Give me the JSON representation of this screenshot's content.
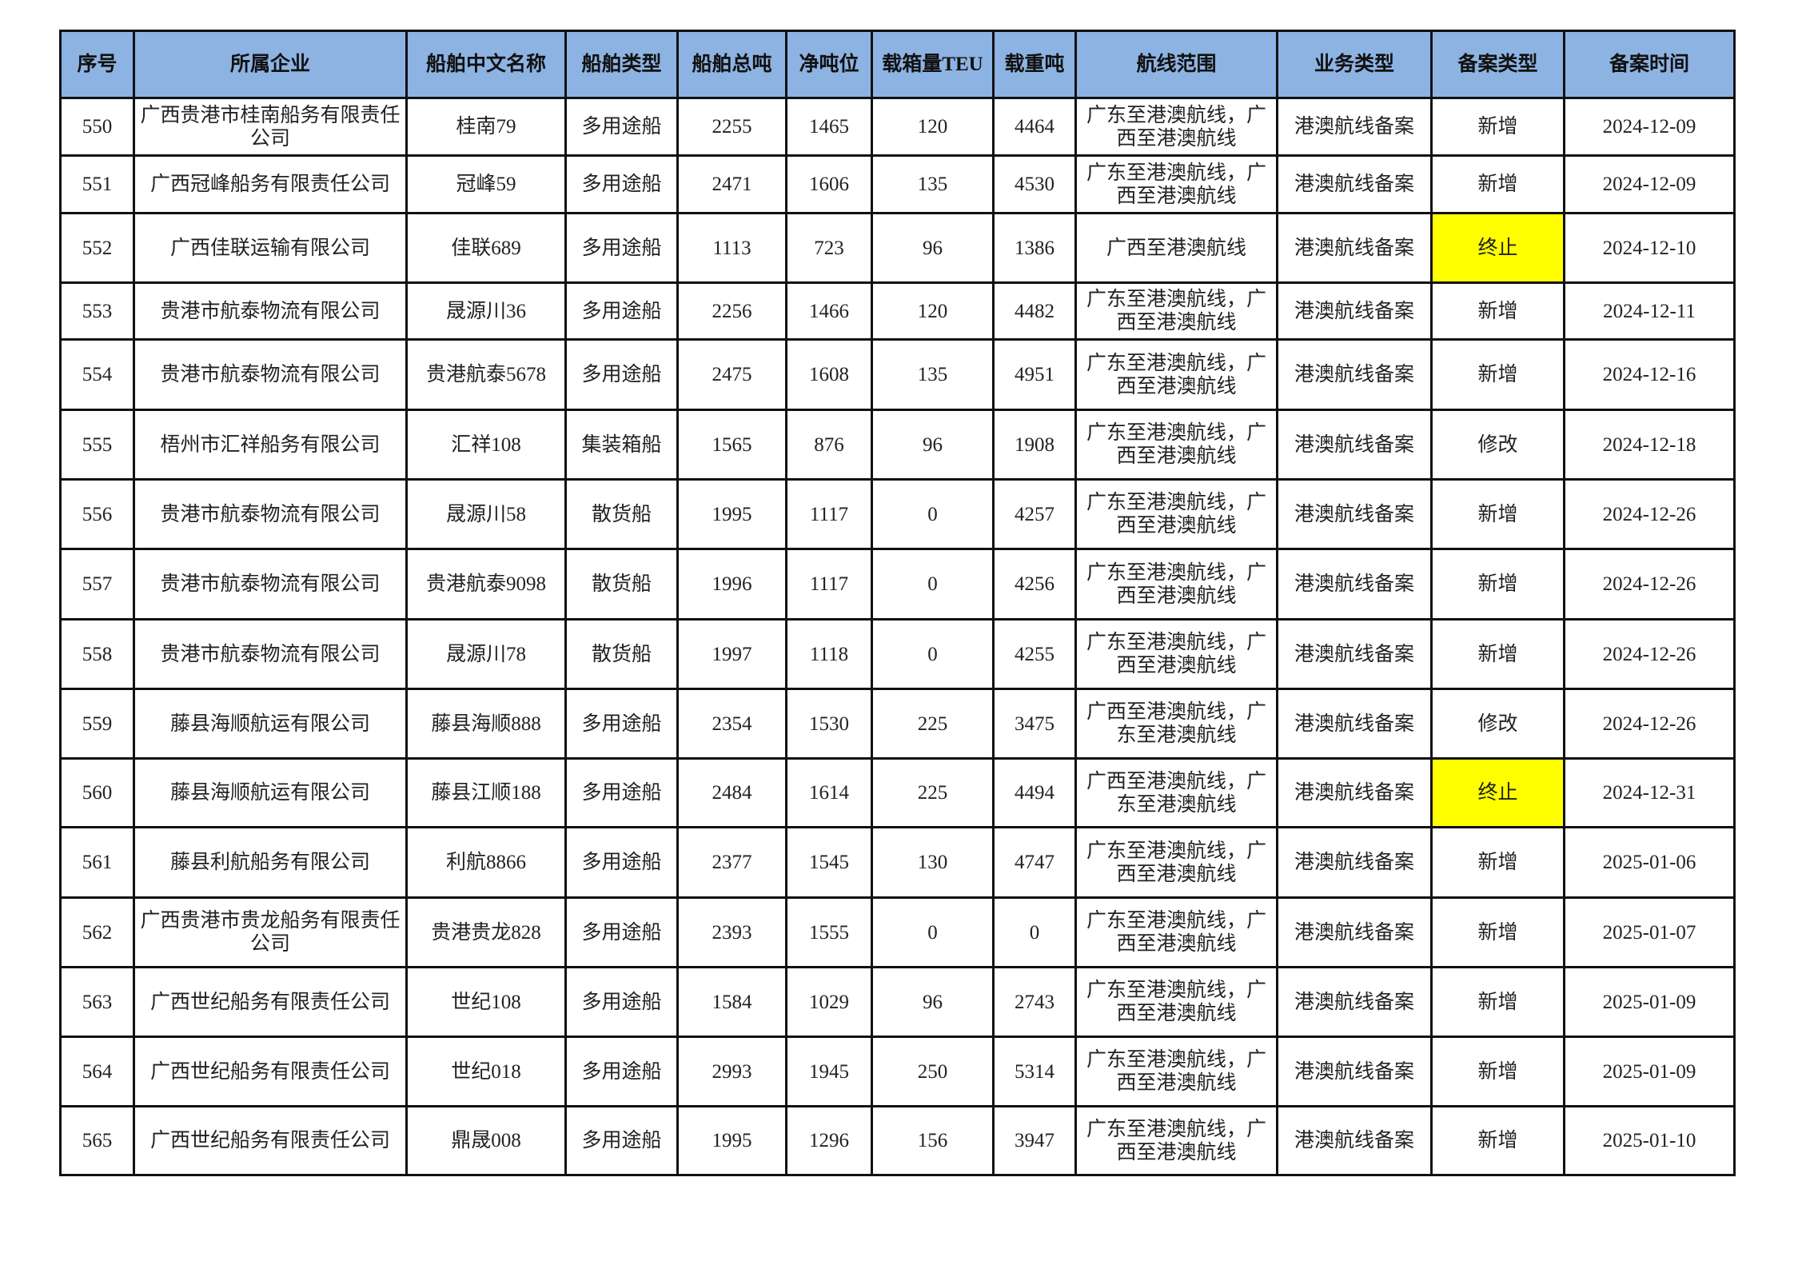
{
  "headers": [
    "序号",
    "所属企业",
    "船舶中文名称",
    "船舶类型",
    "船舶总吨",
    "净吨位",
    "载箱量TEU",
    "载重吨",
    "航线范围",
    "业务类型",
    "备案类型",
    "备案时间"
  ],
  "highlight_color": "#ffff00",
  "header_color": "#8db3e2",
  "rows": [
    [
      "550",
      "广西贵港市桂南船务有限责任公司",
      "桂南79",
      "多用途船",
      "2255",
      "1465",
      "120",
      "4464",
      "广东至港澳航线，广西至港澳航线",
      "港澳航线备案",
      "新增",
      "2024-12-09"
    ],
    [
      "551",
      "广西冠峰船务有限责任公司",
      "冠峰59",
      "多用途船",
      "2471",
      "1606",
      "135",
      "4530",
      "广东至港澳航线，广西至港澳航线",
      "港澳航线备案",
      "新增",
      "2024-12-09"
    ],
    [
      "552",
      "广西佳联运输有限公司",
      "佳联689",
      "多用途船",
      "1113",
      "723",
      "96",
      "1386",
      "广西至港澳航线",
      "港澳航线备案",
      "终止",
      "2024-12-10"
    ],
    [
      "553",
      "贵港市航泰物流有限公司",
      "晟源川36",
      "多用途船",
      "2256",
      "1466",
      "120",
      "4482",
      "广东至港澳航线，广西至港澳航线",
      "港澳航线备案",
      "新增",
      "2024-12-11"
    ],
    [
      "554",
      "贵港市航泰物流有限公司",
      "贵港航泰5678",
      "多用途船",
      "2475",
      "1608",
      "135",
      "4951",
      "广东至港澳航线，广西至港澳航线",
      "港澳航线备案",
      "新增",
      "2024-12-16"
    ],
    [
      "555",
      "梧州市汇祥船务有限公司",
      "汇祥108",
      "集装箱船",
      "1565",
      "876",
      "96",
      "1908",
      "广东至港澳航线，广西至港澳航线",
      "港澳航线备案",
      "修改",
      "2024-12-18"
    ],
    [
      "556",
      "贵港市航泰物流有限公司",
      "晟源川58",
      "散货船",
      "1995",
      "1117",
      "0",
      "4257",
      "广东至港澳航线，广西至港澳航线",
      "港澳航线备案",
      "新增",
      "2024-12-26"
    ],
    [
      "557",
      "贵港市航泰物流有限公司",
      "贵港航泰9098",
      "散货船",
      "1996",
      "1117",
      "0",
      "4256",
      "广东至港澳航线，广西至港澳航线",
      "港澳航线备案",
      "新增",
      "2024-12-26"
    ],
    [
      "558",
      "贵港市航泰物流有限公司",
      "晟源川78",
      "散货船",
      "1997",
      "1118",
      "0",
      "4255",
      "广东至港澳航线，广西至港澳航线",
      "港澳航线备案",
      "新增",
      "2024-12-26"
    ],
    [
      "559",
      "藤县海顺航运有限公司",
      "藤县海顺888",
      "多用途船",
      "2354",
      "1530",
      "225",
      "3475",
      "广西至港澳航线，广东至港澳航线",
      "港澳航线备案",
      "修改",
      "2024-12-26"
    ],
    [
      "560",
      "藤县海顺航运有限公司",
      "藤县江顺188",
      "多用途船",
      "2484",
      "1614",
      "225",
      "4494",
      "广西至港澳航线，广东至港澳航线",
      "港澳航线备案",
      "终止",
      "2024-12-31"
    ],
    [
      "561",
      "藤县利航船务有限公司",
      "利航8866",
      "多用途船",
      "2377",
      "1545",
      "130",
      "4747",
      "广东至港澳航线，广西至港澳航线",
      "港澳航线备案",
      "新增",
      "2025-01-06"
    ],
    [
      "562",
      "广西贵港市贵龙船务有限责任公司",
      "贵港贵龙828",
      "多用途船",
      "2393",
      "1555",
      "0",
      "0",
      "广东至港澳航线，广西至港澳航线",
      "港澳航线备案",
      "新增",
      "2025-01-07"
    ],
    [
      "563",
      "广西世纪船务有限责任公司",
      "世纪108",
      "多用途船",
      "1584",
      "1029",
      "96",
      "2743",
      "广东至港澳航线，广西至港澳航线",
      "港澳航线备案",
      "新增",
      "2025-01-09"
    ],
    [
      "564",
      "广西世纪船务有限责任公司",
      "世纪018",
      "多用途船",
      "2993",
      "1945",
      "250",
      "5314",
      "广东至港澳航线，广西至港澳航线",
      "港澳航线备案",
      "新增",
      "2025-01-09"
    ],
    [
      "565",
      "广西世纪船务有限责任公司",
      "鼎晟008",
      "多用途船",
      "1995",
      "1296",
      "156",
      "3947",
      "广东至港澳航线，广西至港澳航线",
      "港澳航线备案",
      "新增",
      "2025-01-10"
    ]
  ],
  "highlighted_value": "终止"
}
